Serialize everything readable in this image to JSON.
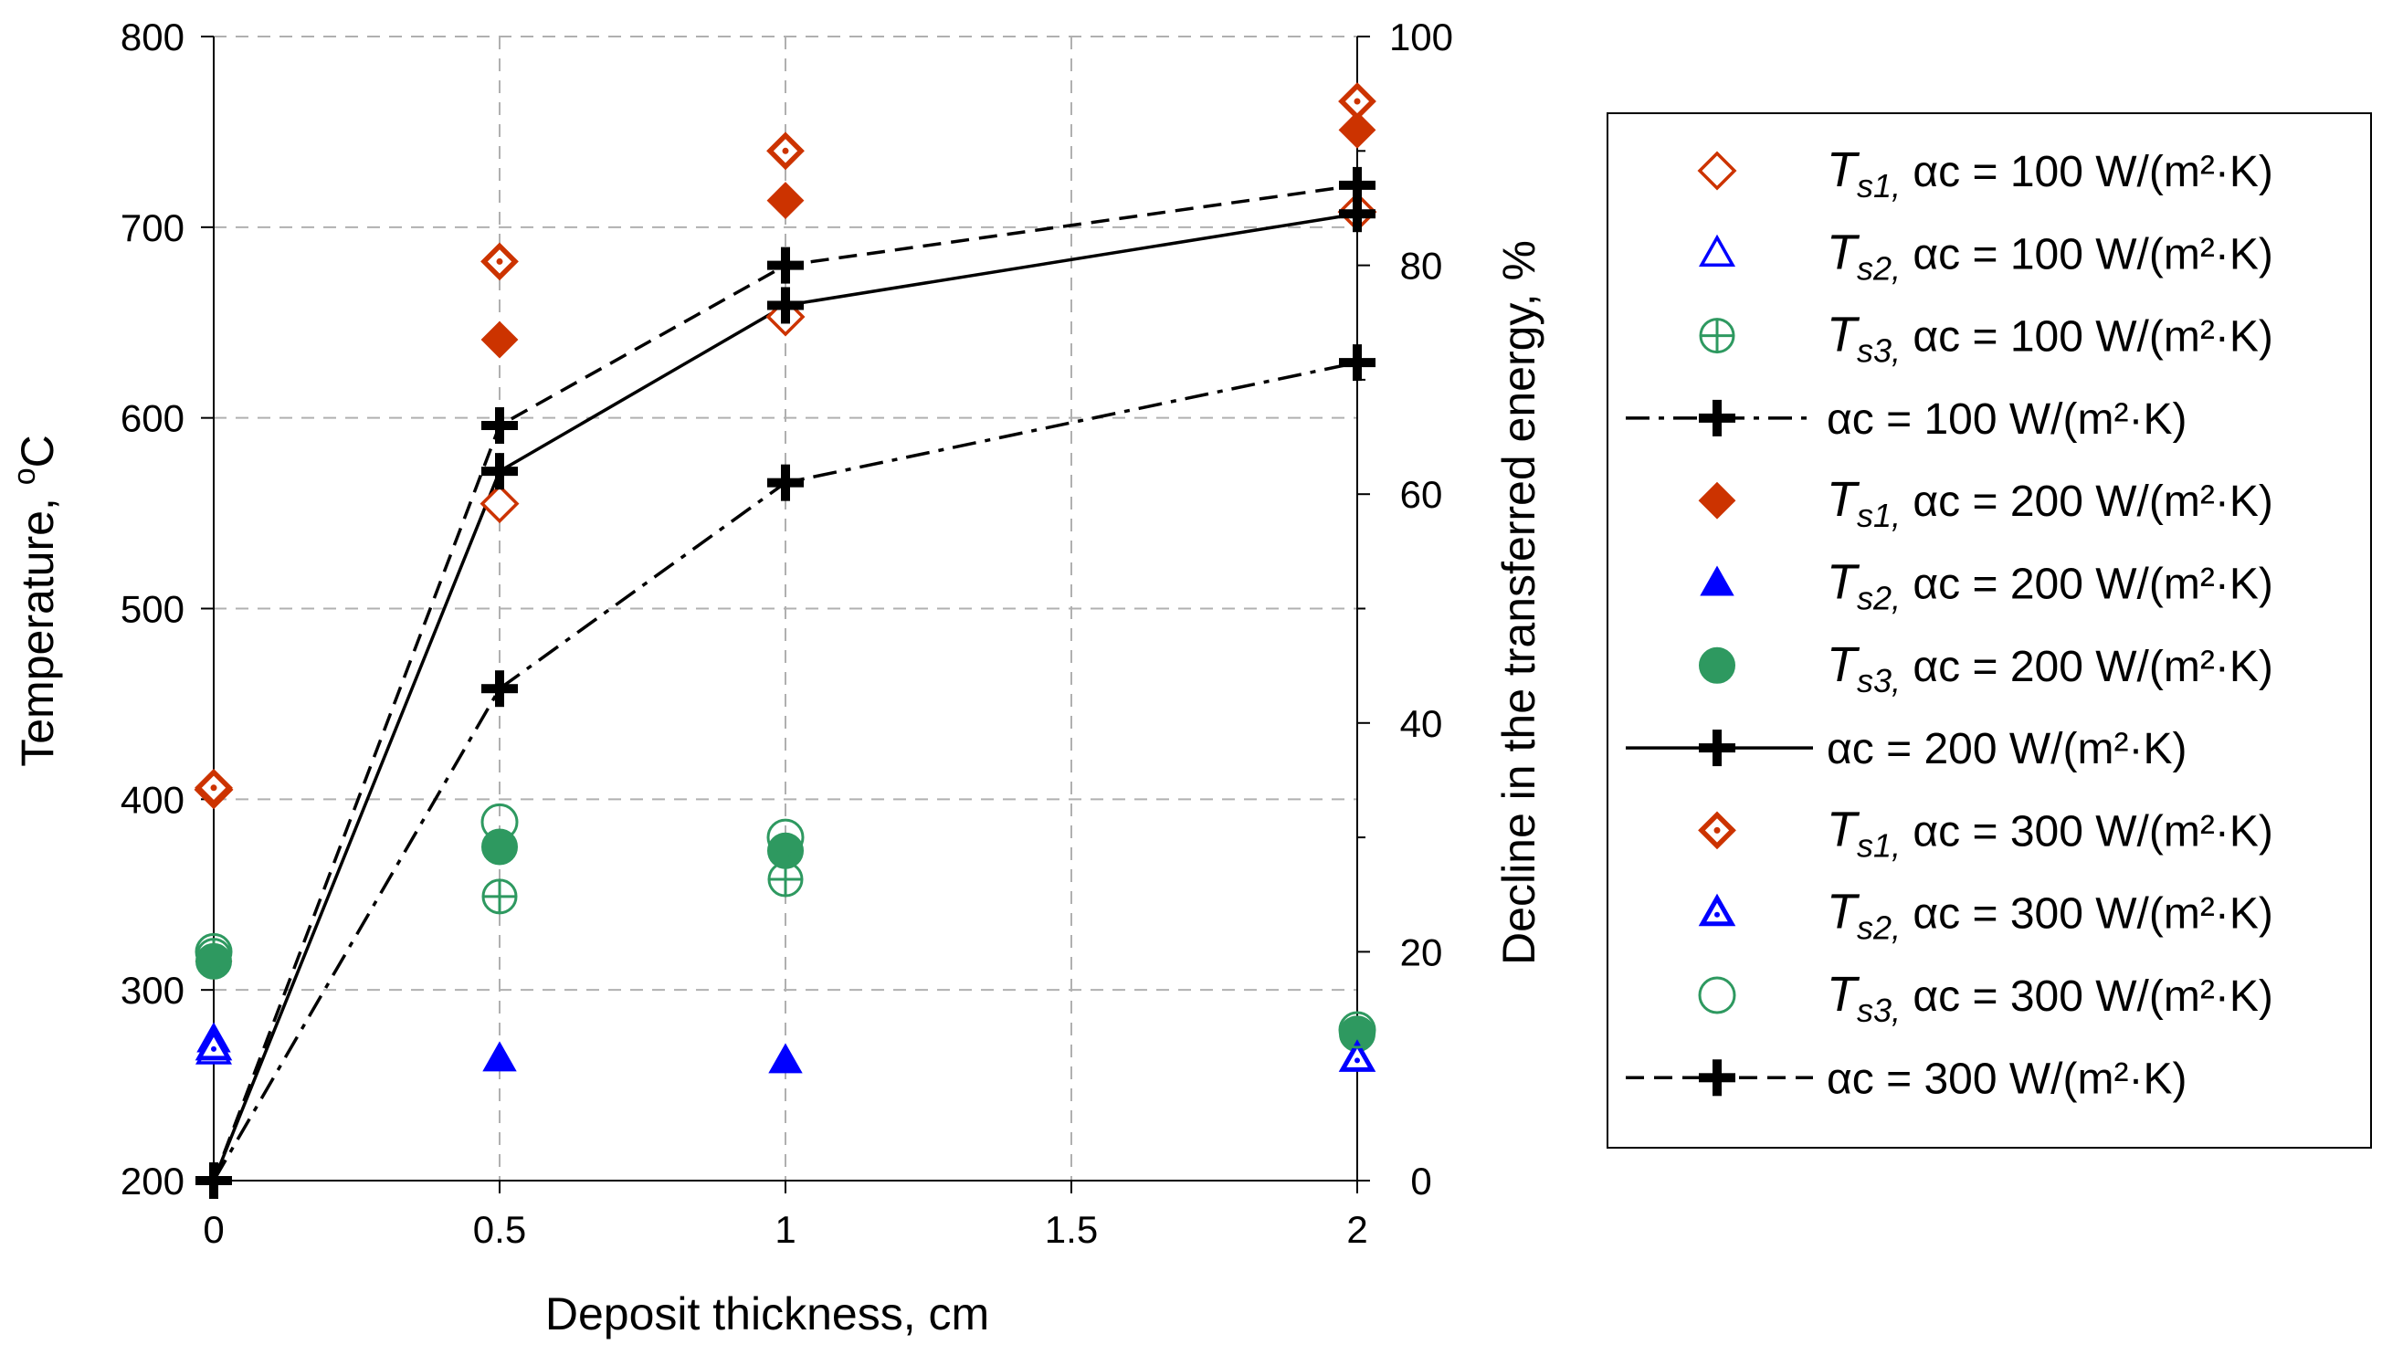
{
  "chart_data": {
    "type": "scatter",
    "title": "",
    "xlabel": "Deposit thickness, cm",
    "ylabel": "Temperature, ",
    "ylabel_super": "o",
    "ylabel_unit": "C",
    "y2label": "Decline in the transferred energy, %",
    "xlim": [
      0,
      2
    ],
    "ylim": [
      200,
      800
    ],
    "y2lim": [
      0,
      100
    ],
    "x_ticks": [
      0,
      0.5,
      1,
      1.5,
      2
    ],
    "x_tick_labels": [
      "0",
      "0.5",
      "1",
      "1.5",
      "2"
    ],
    "y_ticks": [
      200,
      300,
      400,
      500,
      600,
      700,
      800
    ],
    "y_tick_labels": [
      "200",
      "300",
      "400",
      "500",
      "600",
      "700",
      "800"
    ],
    "y2_ticks": [
      0,
      20,
      40,
      60,
      80,
      100
    ],
    "y2_tick_labels": [
      "0",
      "20",
      "40",
      "60",
      "80",
      "100"
    ],
    "grid": true,
    "legend_position": "right",
    "colors": {
      "red": "#cc3300",
      "blue": "#0000ff",
      "green": "#2e9960",
      "black": "#000000"
    },
    "series": [
      {
        "id": "ts1-100",
        "name": "Ts1, αc = 100 W/(m²·K)",
        "sym": "T",
        "sub": "s1,",
        "text": " αc = 100 W/(m²·K)",
        "axis": "left",
        "marker": "diamond-open",
        "color": "#cc3300",
        "x": [
          0,
          0.5,
          1,
          2
        ],
        "y": [
          405,
          555,
          653,
          708
        ]
      },
      {
        "id": "ts2-100",
        "name": "Ts2, αc = 100 W/(m²·K)",
        "sym": "T",
        "sub": "s2,",
        "text": " αc = 100 W/(m²·K)",
        "axis": "left",
        "marker": "triangle-open",
        "color": "#0000ff",
        "x": [
          0
        ],
        "y": [
          268
        ]
      },
      {
        "id": "ts3-100",
        "name": "Ts3, αc = 100 W/(m²·K)",
        "sym": "T",
        "sub": "s3,",
        "text": " αc = 100 W/(m²·K)",
        "axis": "left",
        "marker": "circle-plus",
        "color": "#2e9960",
        "x": [
          0,
          0.5,
          1
        ],
        "y": [
          318,
          349,
          358
        ]
      },
      {
        "id": "e-100",
        "name": "αc = 100 W/(m²·K)",
        "sym": "",
        "sub": "",
        "text": "αc = 100 W/(m²·K)",
        "axis": "right",
        "marker": "cross",
        "color": "#000000",
        "line": "dashdot",
        "x": [
          0,
          0.5,
          1,
          2
        ],
        "y": [
          0,
          43,
          61,
          71.5
        ]
      },
      {
        "id": "ts1-200",
        "name": "Ts1, αc = 200 W/(m²·K)",
        "sym": "T",
        "sub": "s1,",
        "text": " αc = 200 W/(m²·K)",
        "axis": "left",
        "marker": "diamond-filled",
        "color": "#cc3300",
        "x": [
          0,
          0.5,
          1,
          2
        ],
        "y": [
          315,
          641,
          714,
          751
        ]
      },
      {
        "id": "ts2-200",
        "name": "Ts2, αc = 200 W/(m²·K)",
        "sym": "T",
        "sub": "s2,",
        "text": "  αc = 200 W/(m²·K)",
        "axis": "left",
        "marker": "triangle-filled",
        "color": "#0000ff",
        "x": [
          0,
          0.5,
          1,
          2
        ],
        "y": [
          274,
          264,
          263,
          264
        ]
      },
      {
        "id": "ts3-200",
        "name": "Ts3, αc = 200 W/(m²·K)",
        "sym": "T",
        "sub": "s3,",
        "text": " αc = 200 W/(m²·K)",
        "axis": "left",
        "marker": "circle-filled",
        "color": "#2e9960",
        "x": [
          0,
          0.5,
          1,
          2
        ],
        "y": [
          315,
          375,
          373,
          277
        ]
      },
      {
        "id": "e-200",
        "name": "αc = 200 W/(m²·K)",
        "sym": "",
        "sub": "",
        "text": "αc = 200 W/(m²·K)",
        "axis": "right",
        "marker": "cross",
        "color": "#000000",
        "line": "solid",
        "x": [
          0,
          0.5,
          1,
          2
        ],
        "y": [
          0,
          62,
          76.5,
          84.5
        ]
      },
      {
        "id": "ts1-300",
        "name": "Ts1, αc = 300 W/(m²·K)",
        "sym": "T",
        "sub": "s1,",
        "text": " αc = 300 W/(m²·K)",
        "axis": "left",
        "marker": "diamond-dot",
        "color": "#cc3300",
        "x": [
          0,
          0.5,
          1,
          2
        ],
        "y": [
          406,
          682,
          740,
          766
        ]
      },
      {
        "id": "ts2-300",
        "name": "Ts2, αc = 300 W/(m²·K)",
        "sym": "T",
        "sub": "s2,",
        "text": " αc = 300 W/(m²·K)",
        "axis": "left",
        "marker": "triangle-dot",
        "color": "#0000ff",
        "x": [
          0,
          2
        ],
        "y": [
          270,
          264
        ]
      },
      {
        "id": "ts3-300",
        "name": "Ts3, αc = 300 W/(m²·K)",
        "sym": "T",
        "sub": "s3,",
        "text": " αc = 300 W/(m²·K)",
        "axis": "left",
        "marker": "circle-open",
        "color": "#2e9960",
        "x": [
          0,
          0.5,
          1,
          2
        ],
        "y": [
          320,
          388,
          380,
          279
        ]
      },
      {
        "id": "e-300",
        "name": "αc = 300 W/(m²·K)",
        "sym": "",
        "sub": "",
        "text": "αc = 300 W/(m²·K)",
        "axis": "right",
        "marker": "cross",
        "color": "#000000",
        "line": "dashed",
        "x": [
          0,
          0.5,
          1,
          2
        ],
        "y": [
          0,
          66,
          80,
          87
        ]
      }
    ]
  }
}
